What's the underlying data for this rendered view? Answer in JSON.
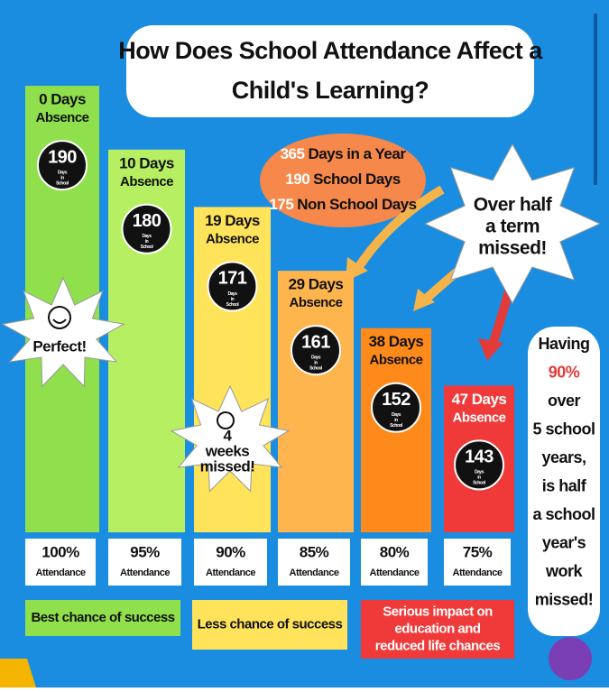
{
  "title_lines": [
    "How Does School Attendance Affect a",
    "Child's Learning?"
  ],
  "year_info": [
    {
      "number": "365",
      "text": "Days in a Year"
    },
    {
      "number": "190",
      "text": "School Days"
    },
    {
      "number": "175",
      "text": "Non School Days"
    }
  ],
  "star_note": [
    "Over half",
    "a term",
    "missed!"
  ],
  "days_caption": [
    "Days",
    "in",
    "School"
  ],
  "absence_word": "Absence",
  "attendance_word": "Attendance",
  "bars": [
    {
      "absence": "0 Days",
      "days": 190,
      "attendance": "100%",
      "color": "#8fe04c"
    },
    {
      "absence": "10 Days",
      "days": 180,
      "attendance": "95%",
      "color": "#b6f062"
    },
    {
      "absence": "19 Days",
      "days": 171,
      "attendance": "90%",
      "color": "#ffe35a"
    },
    {
      "absence": "29 Days",
      "days": 161,
      "attendance": "85%",
      "color": "#ffb54d"
    },
    {
      "absence": "38 Days",
      "days": 152,
      "attendance": "80%",
      "color": "#ff8a1c"
    },
    {
      "absence": "47 Days",
      "days": 143,
      "attendance": "75%",
      "color": "#f03a3a"
    }
  ],
  "perfect": "Perfect!",
  "weeks_note": [
    "4",
    "weeks",
    "missed!"
  ],
  "side_note": [
    "Having",
    "90%",
    "over",
    "5 school",
    "years,",
    "is half",
    "a school",
    "year's",
    "work",
    "missed!"
  ],
  "outcomes": [
    {
      "lines": [
        "Best chance of success"
      ],
      "color": "#8fe04c"
    },
    {
      "lines": [
        "Less chance of success"
      ],
      "color": "#ffe35a"
    },
    {
      "lines": [
        "Serious impact on",
        "education and",
        "reduced life chances"
      ],
      "color": "#f03a3a"
    }
  ]
}
